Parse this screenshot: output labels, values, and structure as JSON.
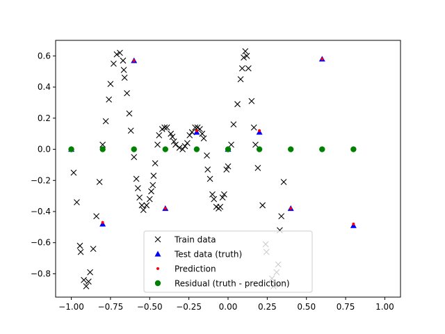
{
  "chart_data": {
    "type": "scatter",
    "title": "",
    "xlabel": "",
    "ylabel": "",
    "xlim": [
      -1.1,
      1.1
    ],
    "ylim": [
      -0.95,
      0.7
    ],
    "x_ticks": [
      -1.0,
      -0.75,
      -0.5,
      -0.25,
      0.0,
      0.25,
      0.5,
      0.75,
      1.0
    ],
    "x_tick_labels": [
      "−1.00",
      "−0.75",
      "−0.50",
      "−0.25",
      "0.00",
      "0.25",
      "0.50",
      "0.75",
      "1.00"
    ],
    "y_ticks": [
      -0.8,
      -0.6,
      -0.4,
      -0.2,
      0.0,
      0.2,
      0.4,
      0.6
    ],
    "y_tick_labels": [
      "−0.8",
      "−0.6",
      "−0.4",
      "−0.2",
      "0.0",
      "0.2",
      "0.4",
      "0.6"
    ],
    "grid": false,
    "legend_position": "bottom-center",
    "series": [
      {
        "name": "Train data",
        "marker": "x",
        "color": "#000000",
        "points": [
          [
            -0.985,
            -0.15
          ],
          [
            -0.965,
            -0.34
          ],
          [
            -0.945,
            -0.62
          ],
          [
            -0.94,
            -0.66
          ],
          [
            -0.92,
            -0.84
          ],
          [
            -0.905,
            -0.88
          ],
          [
            -0.89,
            -0.85
          ],
          [
            -0.88,
            -0.79
          ],
          [
            -0.86,
            -0.64
          ],
          [
            -0.84,
            -0.43
          ],
          [
            -0.82,
            -0.21
          ],
          [
            -0.8,
            0.03
          ],
          [
            -0.78,
            0.18
          ],
          [
            -0.76,
            0.32
          ],
          [
            -0.75,
            0.42
          ],
          [
            -0.73,
            0.55
          ],
          [
            -0.71,
            0.61
          ],
          [
            -0.69,
            0.62
          ],
          [
            -0.67,
            0.57
          ],
          [
            -0.665,
            0.51
          ],
          [
            -0.66,
            0.46
          ],
          [
            -0.645,
            0.36
          ],
          [
            -0.63,
            0.23
          ],
          [
            -0.62,
            0.12
          ],
          [
            -0.6,
            -0.05
          ],
          [
            -0.585,
            -0.19
          ],
          [
            -0.575,
            -0.25
          ],
          [
            -0.565,
            -0.31
          ],
          [
            -0.55,
            -0.36
          ],
          [
            -0.54,
            -0.39
          ],
          [
            -0.52,
            -0.36
          ],
          [
            -0.5,
            -0.32
          ],
          [
            -0.49,
            -0.27
          ],
          [
            -0.48,
            -0.23
          ],
          [
            -0.475,
            -0.17
          ],
          [
            -0.465,
            -0.09
          ],
          [
            -0.45,
            0.03
          ],
          [
            -0.44,
            0.09
          ],
          [
            -0.42,
            0.13
          ],
          [
            -0.405,
            0.14
          ],
          [
            -0.39,
            0.14
          ],
          [
            -0.365,
            0.1
          ],
          [
            -0.355,
            0.08
          ],
          [
            -0.345,
            0.05
          ],
          [
            -0.335,
            0.03
          ],
          [
            -0.31,
            0.01
          ],
          [
            -0.29,
            0.0
          ],
          [
            -0.275,
            0.02
          ],
          [
            -0.26,
            0.04
          ],
          [
            -0.245,
            0.09
          ],
          [
            -0.23,
            0.11
          ],
          [
            -0.21,
            0.14
          ],
          [
            -0.195,
            0.14
          ],
          [
            -0.18,
            0.13
          ],
          [
            -0.165,
            0.1
          ],
          [
            -0.155,
            0.07
          ],
          [
            -0.135,
            -0.04
          ],
          [
            -0.13,
            -0.13
          ],
          [
            -0.115,
            -0.19
          ],
          [
            -0.1,
            -0.29
          ],
          [
            -0.09,
            -0.32
          ],
          [
            -0.075,
            -0.37
          ],
          [
            -0.06,
            -0.38
          ],
          [
            -0.05,
            -0.37
          ],
          [
            -0.035,
            -0.31
          ],
          [
            -0.025,
            -0.29
          ],
          [
            -0.01,
            -0.13
          ],
          [
            0.0,
            -0.11
          ],
          [
            0.02,
            0.03
          ],
          [
            0.035,
            0.16
          ],
          [
            0.06,
            0.29
          ],
          [
            0.08,
            0.45
          ],
          [
            0.09,
            0.52
          ],
          [
            0.1,
            0.59
          ],
          [
            0.11,
            0.63
          ],
          [
            0.12,
            0.6
          ],
          [
            0.13,
            0.52
          ],
          [
            0.15,
            0.31
          ],
          [
            0.165,
            0.14
          ],
          [
            0.175,
            0.03
          ],
          [
            0.19,
            -0.12
          ],
          [
            0.22,
            -0.36
          ],
          [
            0.24,
            -0.61
          ],
          [
            0.245,
            -0.66
          ],
          [
            0.28,
            -0.83
          ],
          [
            0.29,
            -0.88
          ],
          [
            0.3,
            -0.87
          ],
          [
            0.31,
            -0.79
          ],
          [
            0.32,
            -0.74
          ],
          [
            0.33,
            -0.52
          ],
          [
            0.34,
            -0.43
          ],
          [
            0.355,
            -0.21
          ]
        ]
      },
      {
        "name": "Test data (truth)",
        "marker": "triangle",
        "color": "#0000ff",
        "points": [
          [
            -1.0,
            0.0
          ],
          [
            -0.8,
            -0.48
          ],
          [
            -0.6,
            0.57
          ],
          [
            -0.4,
            -0.38
          ],
          [
            -0.2,
            0.11
          ],
          [
            0.0,
            0.0
          ],
          [
            0.2,
            0.11
          ],
          [
            0.4,
            -0.38
          ],
          [
            0.6,
            0.58
          ],
          [
            0.8,
            -0.49
          ]
        ]
      },
      {
        "name": "Prediction",
        "marker": "dot",
        "color": "#ff0000",
        "points": [
          [
            -1.0,
            0.0
          ],
          [
            -0.8,
            -0.47
          ],
          [
            -0.6,
            0.57
          ],
          [
            -0.4,
            -0.38
          ],
          [
            -0.2,
            0.12
          ],
          [
            0.0,
            0.0
          ],
          [
            0.2,
            0.12
          ],
          [
            0.4,
            -0.38
          ],
          [
            0.6,
            0.58
          ],
          [
            0.8,
            -0.48
          ]
        ]
      },
      {
        "name": "Residual (truth - prediction)",
        "marker": "circle",
        "color": "#008000",
        "points": [
          [
            -1.0,
            0.0
          ],
          [
            -0.8,
            0.0
          ],
          [
            -0.6,
            0.0
          ],
          [
            -0.4,
            0.0
          ],
          [
            -0.2,
            0.0
          ],
          [
            0.0,
            0.0
          ],
          [
            0.2,
            0.0
          ],
          [
            0.4,
            0.0
          ],
          [
            0.6,
            0.0
          ],
          [
            0.8,
            0.0
          ]
        ]
      }
    ]
  }
}
